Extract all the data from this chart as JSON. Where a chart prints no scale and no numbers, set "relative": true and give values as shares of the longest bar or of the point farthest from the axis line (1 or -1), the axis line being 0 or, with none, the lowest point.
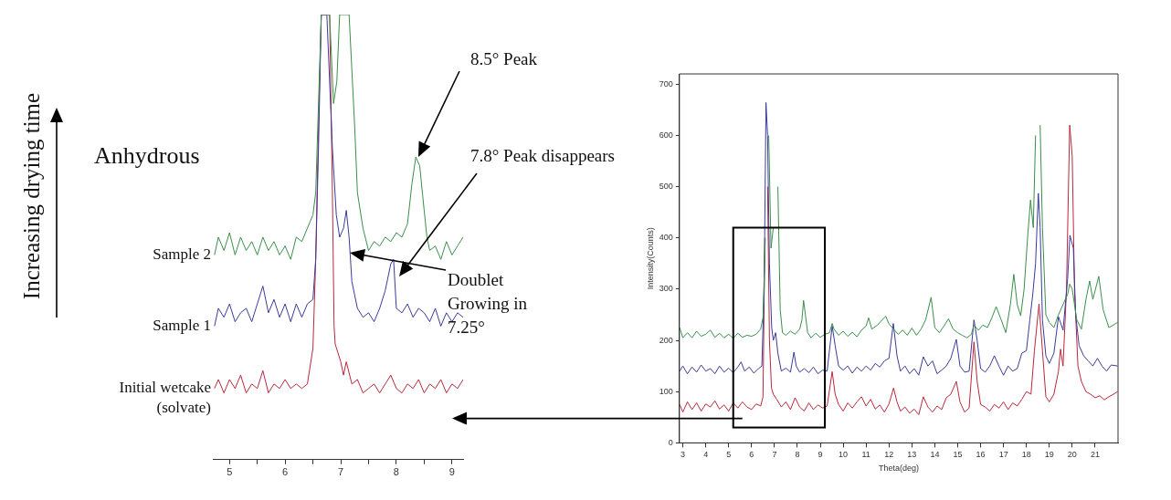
{
  "chart_data": [
    {
      "type": "line",
      "relative": true,
      "xlim": [
        4.7,
        9.2
      ],
      "xticks": [
        5,
        {
          "value": 5.5,
          "label": null
        },
        6,
        {
          "value": 6.5,
          "label": null
        },
        7,
        {
          "value": 7.5,
          "label": null
        },
        8,
        {
          "value": 8.5,
          "label": null
        },
        9
      ],
      "annotations": [
        "Anhydrous",
        "8.5° Peak",
        "7.8° Peak disappears",
        "Doublet Growing in 7.25°",
        "Increasing drying time"
      ],
      "series": [
        {
          "name": "Sample 2",
          "color": "#3a8f4a",
          "x": [
            4.73,
            4.8,
            4.9,
            5.0,
            5.1,
            5.2,
            5.3,
            5.4,
            5.5,
            5.6,
            5.7,
            5.8,
            5.9,
            6.0,
            6.1,
            6.2,
            6.3,
            6.4,
            6.5,
            6.55,
            6.6,
            6.65,
            6.7,
            6.8,
            6.87,
            6.93,
            6.98,
            7.15,
            7.25,
            7.3,
            7.4,
            7.5,
            7.6,
            7.7,
            7.8,
            7.9,
            8.0,
            8.1,
            8.2,
            8.28,
            8.35,
            8.42,
            8.5,
            8.55,
            8.6,
            8.7,
            8.8,
            8.9,
            9.0,
            9.1,
            9.2
          ],
          "values": [
            0.46,
            0.5,
            0.47,
            0.51,
            0.46,
            0.5,
            0.47,
            0.49,
            0.46,
            0.5,
            0.47,
            0.49,
            0.46,
            0.48,
            0.45,
            0.5,
            0.49,
            0.52,
            0.55,
            0.6,
            0.8,
            1.0,
            1.0,
            1.0,
            0.8,
            0.85,
            1.0,
            1.0,
            0.75,
            0.6,
            0.52,
            0.47,
            0.49,
            0.48,
            0.5,
            0.49,
            0.51,
            0.5,
            0.53,
            0.62,
            0.68,
            0.66,
            0.56,
            0.5,
            0.47,
            0.48,
            0.45,
            0.49,
            0.46,
            0.48,
            0.5
          ]
        },
        {
          "name": "Sample 1",
          "color": "#3a3a9a",
          "x": [
            4.73,
            4.8,
            4.9,
            5.0,
            5.1,
            5.2,
            5.3,
            5.4,
            5.5,
            5.6,
            5.65,
            5.7,
            5.8,
            5.9,
            6.0,
            6.1,
            6.2,
            6.3,
            6.4,
            6.5,
            6.55,
            6.6,
            6.65,
            6.75,
            6.85,
            6.92,
            6.98,
            7.05,
            7.1,
            7.15,
            7.2,
            7.3,
            7.4,
            7.5,
            7.6,
            7.7,
            7.8,
            7.9,
            7.95,
            8.0,
            8.1,
            8.2,
            8.3,
            8.4,
            8.5,
            8.6,
            8.7,
            8.8,
            8.9,
            9.0,
            9.1,
            9.2
          ],
          "values": [
            0.3,
            0.34,
            0.32,
            0.35,
            0.31,
            0.33,
            0.34,
            0.31,
            0.35,
            0.39,
            0.36,
            0.33,
            0.36,
            0.32,
            0.35,
            0.31,
            0.35,
            0.32,
            0.35,
            0.36,
            0.45,
            0.7,
            1.0,
            1.0,
            0.7,
            0.55,
            0.5,
            0.52,
            0.56,
            0.5,
            0.4,
            0.34,
            0.32,
            0.33,
            0.31,
            0.34,
            0.38,
            0.44,
            0.45,
            0.34,
            0.33,
            0.35,
            0.32,
            0.34,
            0.33,
            0.31,
            0.34,
            0.3,
            0.33,
            0.31,
            0.33,
            0.32
          ]
        },
        {
          "name": "Initial wetcake (solvate)",
          "color": "#b8283c",
          "x": [
            4.73,
            4.8,
            4.9,
            5.0,
            5.1,
            5.2,
            5.3,
            5.4,
            5.5,
            5.6,
            5.7,
            5.8,
            5.9,
            6.0,
            6.1,
            6.2,
            6.3,
            6.4,
            6.5,
            6.55,
            6.6,
            6.65,
            6.8,
            6.85,
            6.88,
            6.9,
            7.0,
            7.05,
            7.1,
            7.2,
            7.3,
            7.4,
            7.5,
            7.6,
            7.7,
            7.8,
            7.9,
            8.0,
            8.1,
            8.2,
            8.3,
            8.4,
            8.5,
            8.6,
            8.7,
            8.8,
            8.9,
            9.0,
            9.1,
            9.2
          ],
          "values": [
            0.16,
            0.18,
            0.15,
            0.18,
            0.16,
            0.19,
            0.15,
            0.17,
            0.16,
            0.2,
            0.15,
            0.17,
            0.16,
            0.18,
            0.16,
            0.17,
            0.16,
            0.17,
            0.25,
            0.45,
            0.75,
            1.0,
            1.0,
            0.6,
            0.3,
            0.26,
            0.22,
            0.19,
            0.22,
            0.17,
            0.18,
            0.15,
            0.16,
            0.17,
            0.15,
            0.17,
            0.19,
            0.16,
            0.15,
            0.17,
            0.16,
            0.18,
            0.15,
            0.17,
            0.16,
            0.18,
            0.15,
            0.17,
            0.16,
            0.18
          ]
        }
      ]
    },
    {
      "type": "line",
      "xlabel": "Theta(deg)",
      "ylabel": "Intensity(Counts)",
      "xlim": [
        2.85,
        22
      ],
      "ylim": [
        0,
        720
      ],
      "xticks": [
        3,
        4,
        5,
        6,
        7,
        8,
        9,
        10,
        11,
        12,
        13,
        14,
        15,
        16,
        17,
        18,
        19,
        20,
        21
      ],
      "yticks": [
        0,
        100,
        200,
        300,
        400,
        500,
        600,
        700
      ],
      "series": [
        {
          "color": "#3a8f4a",
          "x": [
            2.86,
            3.0,
            3.2,
            3.4,
            3.6,
            3.8,
            4.0,
            4.2,
            4.4,
            4.6,
            4.8,
            5.0,
            5.2,
            5.4,
            5.6,
            5.8,
            6.0,
            6.2,
            6.4,
            6.5,
            6.6,
            6.68,
            6.75,
            6.85,
            6.95,
            7.05,
            7.15,
            7.25,
            7.35,
            7.5,
            7.7,
            7.9,
            8.1,
            8.2,
            8.27,
            8.35,
            8.45,
            8.6,
            8.8,
            9.0,
            9.2,
            9.4,
            9.52,
            9.6,
            9.8,
            10.0,
            10.2,
            10.4,
            10.6,
            10.8,
            11.0,
            11.11,
            11.25,
            11.5,
            11.7,
            11.86,
            12.0,
            12.2,
            12.4,
            12.6,
            12.8,
            13.0,
            13.2,
            13.4,
            13.6,
            13.84,
            14.0,
            14.2,
            14.4,
            14.6,
            14.8,
            15.0,
            15.2,
            15.4,
            15.6,
            15.71,
            15.9,
            16.1,
            16.3,
            16.5,
            16.68,
            16.9,
            17.1,
            17.3,
            17.45,
            17.6,
            17.75,
            17.9,
            18.05,
            18.18,
            18.3,
            18.4,
            18.52,
            18.6,
            18.7,
            18.85,
            19.0,
            19.2,
            19.4,
            19.6,
            19.8,
            19.89,
            20.0,
            20.2,
            20.4,
            20.6,
            20.76,
            20.9,
            21.16,
            21.35,
            21.6,
            21.8,
            21.98
          ],
          "values": [
            225,
            205,
            215,
            205,
            218,
            208,
            212,
            220,
            206,
            214,
            205,
            212,
            204,
            214,
            206,
            210,
            208,
            212,
            222,
            245,
            400,
            null,
            600,
            380,
            420,
            null,
            500,
            260,
            215,
            210,
            218,
            212,
            222,
            240,
            278,
            250,
            215,
            205,
            214,
            206,
            212,
            215,
            233,
            222,
            210,
            218,
            208,
            216,
            207,
            220,
            228,
            244,
            222,
            230,
            240,
            247,
            232,
            222,
            212,
            220,
            210,
            224,
            210,
            222,
            240,
            284,
            225,
            215,
            228,
            242,
            222,
            215,
            210,
            205,
            212,
            230,
            220,
            230,
            225,
            245,
            266,
            240,
            215,
            270,
            329,
            270,
            248,
            300,
            400,
            474,
            420,
            600,
            null,
            620,
            420,
            250,
            235,
            225,
            250,
            270,
            290,
            310,
            300,
            240,
            222,
            280,
            316,
            280,
            325,
            260,
            225,
            230,
            235
          ]
        },
        {
          "color": "#3a3a9a",
          "x": [
            2.86,
            3.0,
            3.2,
            3.4,
            3.6,
            3.8,
            4.0,
            4.2,
            4.4,
            4.6,
            4.8,
            5.0,
            5.2,
            5.4,
            5.54,
            5.7,
            5.9,
            6.1,
            6.3,
            6.45,
            6.55,
            6.63,
            6.7,
            6.78,
            6.88,
            6.95,
            7.05,
            7.15,
            7.3,
            7.5,
            7.7,
            7.85,
            7.95,
            8.1,
            8.3,
            8.5,
            8.7,
            8.9,
            9.1,
            9.3,
            9.52,
            9.65,
            9.8,
            10.0,
            10.2,
            10.4,
            10.6,
            10.8,
            11.0,
            11.2,
            11.4,
            11.6,
            11.8,
            12.0,
            12.19,
            12.35,
            12.5,
            12.7,
            12.9,
            13.1,
            13.3,
            13.5,
            13.7,
            13.9,
            14.1,
            14.3,
            14.5,
            14.7,
            14.94,
            15.1,
            15.3,
            15.5,
            15.71,
            15.85,
            16.0,
            16.2,
            16.4,
            16.6,
            16.8,
            17.0,
            17.2,
            17.4,
            17.6,
            17.8,
            18.0,
            18.15,
            18.28,
            18.4,
            18.52,
            18.6,
            18.7,
            18.85,
            19.0,
            19.2,
            19.4,
            19.6,
            19.8,
            19.9,
            20.05,
            20.15,
            20.3,
            20.5,
            20.7,
            20.9,
            21.1,
            21.3,
            21.5,
            21.7,
            21.98
          ],
          "values": [
            140,
            150,
            135,
            148,
            138,
            152,
            140,
            145,
            135,
            150,
            138,
            146,
            137,
            148,
            158,
            140,
            148,
            136,
            145,
            150,
            300,
            664,
            600,
            350,
            225,
            200,
            215,
            175,
            140,
            146,
            138,
            177,
            150,
            138,
            145,
            137,
            148,
            135,
            142,
            140,
            228,
            190,
            150,
            142,
            150,
            136,
            148,
            140,
            150,
            142,
            155,
            148,
            160,
            165,
            233,
            170,
            140,
            150,
            135,
            145,
            132,
            168,
            150,
            160,
            135,
            142,
            150,
            165,
            202,
            150,
            138,
            140,
            240,
            200,
            145,
            138,
            150,
            170,
            150,
            132,
            150,
            140,
            145,
            175,
            180,
            240,
            291,
            350,
            487,
            420,
            240,
            170,
            155,
            175,
            246,
            220,
            320,
            405,
            380,
            250,
            190,
            170,
            160,
            150,
            165,
            150,
            140,
            152,
            150
          ]
        },
        {
          "color": "#b8283c",
          "x": [
            2.86,
            3.0,
            3.2,
            3.4,
            3.6,
            3.8,
            4.0,
            4.2,
            4.4,
            4.6,
            4.8,
            5.0,
            5.2,
            5.4,
            5.6,
            5.8,
            6.0,
            6.2,
            6.4,
            6.5,
            6.58,
            6.63,
            6.7,
            6.78,
            6.87,
            6.95,
            7.1,
            7.3,
            7.5,
            7.7,
            7.9,
            8.1,
            8.3,
            8.5,
            8.7,
            8.9,
            9.1,
            9.3,
            9.52,
            9.65,
            9.8,
            10.0,
            10.2,
            10.4,
            10.6,
            10.8,
            11.0,
            11.2,
            11.4,
            11.6,
            11.8,
            12.0,
            12.2,
            12.35,
            12.5,
            12.7,
            12.9,
            13.1,
            13.3,
            13.5,
            13.7,
            13.9,
            14.1,
            14.3,
            14.5,
            14.7,
            14.94,
            15.1,
            15.3,
            15.5,
            15.71,
            15.85,
            16.0,
            16.2,
            16.4,
            16.6,
            16.8,
            17.0,
            17.2,
            17.4,
            17.6,
            17.8,
            18.0,
            18.2,
            18.35,
            18.55,
            18.7,
            18.85,
            19.0,
            19.2,
            19.4,
            19.49,
            19.6,
            19.75,
            19.89,
            20.0,
            20.1,
            20.25,
            20.4,
            20.6,
            20.8,
            21.0,
            21.2,
            21.4,
            21.6,
            21.8,
            21.98
          ],
          "values": [
            75,
            60,
            80,
            65,
            78,
            62,
            76,
            70,
            82,
            66,
            74,
            62,
            78,
            68,
            80,
            70,
            65,
            76,
            72,
            90,
            400,
            null,
            500,
            200,
            107,
            95,
            85,
            70,
            80,
            65,
            88,
            70,
            62,
            78,
            65,
            74,
            68,
            72,
            139,
            95,
            75,
            62,
            78,
            68,
            80,
            90,
            72,
            85,
            66,
            74,
            60,
            76,
            107,
            80,
            62,
            70,
            58,
            66,
            55,
            90,
            70,
            60,
            72,
            65,
            88,
            95,
            120,
            80,
            60,
            68,
            197,
            120,
            75,
            70,
            62,
            75,
            68,
            80,
            65,
            78,
            72,
            85,
            100,
            95,
            180,
            271,
            180,
            90,
            80,
            95,
            140,
            183,
            150,
            300,
            620,
            560,
            300,
            150,
            120,
            100,
            95,
            88,
            92,
            84,
            90,
            95,
            100
          ]
        }
      ]
    }
  ]
}
